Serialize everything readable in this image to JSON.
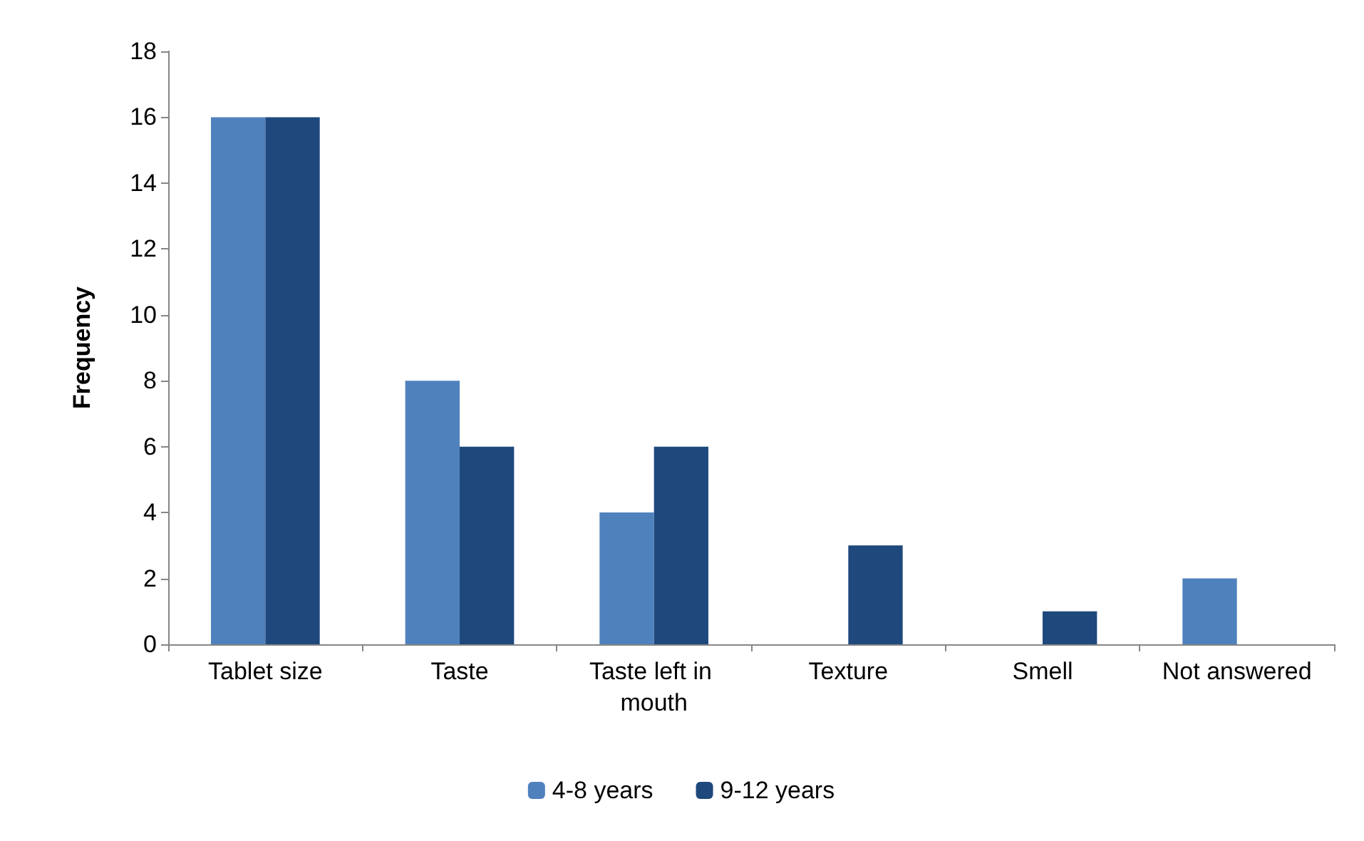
{
  "chart_data": {
    "type": "bar",
    "ylabel": "Frequency",
    "categories": [
      "Tablet size",
      "Taste",
      "Taste left in mouth",
      "Texture",
      "Smell",
      "Not answered"
    ],
    "series": [
      {
        "name": "4-8 years",
        "color": "#4f81bd",
        "values": [
          16,
          8,
          4,
          0,
          0,
          2
        ]
      },
      {
        "name": "9-12 years",
        "color": "#1f497d",
        "values": [
          16,
          6,
          6,
          3,
          1,
          0
        ]
      }
    ],
    "ylim": [
      0,
      18
    ],
    "yticks": [
      0,
      2,
      4,
      6,
      8,
      10,
      12,
      14,
      16,
      18
    ],
    "grid": false,
    "legend": "bottom"
  }
}
